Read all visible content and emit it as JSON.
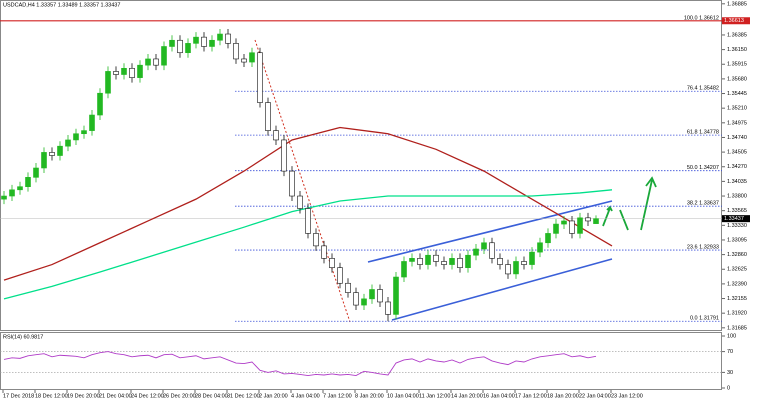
{
  "chart_data": {
    "type": "candlestick",
    "title": "USDCAD,H4 1.33357 1.33489 1.33357 1.33437",
    "up_color": "#22b822",
    "down_color": "#111111",
    "ylim": [
      1.3165,
      1.3693
    ],
    "yticks": [
      1.36885,
      1.36385,
      {
        "value": 1.3615,
        "label": "1.36150"
      },
      1.35915,
      {
        "value": 1.3568,
        "label": "1.35680"
      },
      1.35445,
      {
        "value": 1.3521,
        "label": "1.35210"
      },
      1.34975,
      {
        "value": 1.3474,
        "label": "1.34740"
      },
      1.34505,
      {
        "value": 1.3427,
        "label": "1.34270"
      },
      1.34035,
      {
        "value": 1.338,
        "label": "1.33800"
      },
      1.33565,
      {
        "value": 1.3333,
        "label": "1.33330"
      },
      1.33095,
      {
        "value": 1.3286,
        "label": "1.32860"
      },
      1.32625,
      {
        "value": 1.3239,
        "label": "1.32390"
      },
      1.32155,
      {
        "value": 1.3192,
        "label": "1.31920"
      },
      1.31685
    ],
    "x_labels": [
      "17 Dec 2018",
      "18 Dec 12:00",
      "19 Dec 20:00",
      "21 Dec 04:00",
      "24 Dec 12:00",
      "26 Dec 20:00",
      "28 Dec 04:00",
      "31 Dec 12:00",
      "2 Jan 20:00",
      "4 Jan 04:00",
      "7 Jan 12:00",
      "8 Jan 20:00",
      "10 Jan 04:00",
      "11 Jan 12:00",
      "14 Jan 20:00",
      "16 Jan 04:00",
      "17 Jan 12:00",
      "18 Jan 20:00",
      "22 Jan 04:00",
      "23 Jan 12:00"
    ],
    "candles": [
      [
        1.3375,
        1.3388,
        1.3367,
        1.338
      ],
      [
        1.338,
        1.3398,
        1.3372,
        1.339
      ],
      [
        1.339,
        1.3403,
        1.3382,
        1.3395
      ],
      [
        1.3395,
        1.3418,
        1.3387,
        1.341
      ],
      [
        1.341,
        1.3433,
        1.3402,
        1.3425
      ],
      [
        1.3425,
        1.3458,
        1.3417,
        1.345
      ],
      [
        1.345,
        1.3458,
        1.3437,
        1.3445
      ],
      [
        1.3445,
        1.3468,
        1.3437,
        1.346
      ],
      [
        1.346,
        1.3478,
        1.3452,
        1.347
      ],
      [
        1.347,
        1.3488,
        1.3462,
        1.348
      ],
      [
        1.348,
        1.3493,
        1.3472,
        1.3485
      ],
      [
        1.3485,
        1.3518,
        1.3477,
        1.351
      ],
      [
        1.351,
        1.3553,
        1.3502,
        1.3545
      ],
      [
        1.3545,
        1.3588,
        1.3537,
        1.358
      ],
      [
        1.358,
        1.3588,
        1.3567,
        1.3575
      ],
      [
        1.3575,
        1.3593,
        1.3567,
        1.3585
      ],
      [
        1.3585,
        1.3593,
        1.3562,
        1.357
      ],
      [
        1.357,
        1.3598,
        1.3562,
        1.359
      ],
      [
        1.359,
        1.3608,
        1.3582,
        1.36
      ],
      [
        1.36,
        1.3608,
        1.3582,
        1.359
      ],
      [
        1.359,
        1.3628,
        1.3582,
        1.362
      ],
      [
        1.362,
        1.3638,
        1.3612,
        1.363
      ],
      [
        1.363,
        1.3638,
        1.3602,
        1.361
      ],
      [
        1.361,
        1.3633,
        1.3602,
        1.3625
      ],
      [
        1.3625,
        1.3643,
        1.3617,
        1.3635
      ],
      [
        1.3635,
        1.3643,
        1.3612,
        1.362
      ],
      [
        1.362,
        1.3638,
        1.3612,
        1.363
      ],
      [
        1.363,
        1.3648,
        1.3622,
        1.364
      ],
      [
        1.364,
        1.3648,
        1.3617,
        1.3625
      ],
      [
        1.3625,
        1.3633,
        1.3592,
        1.36
      ],
      [
        1.36,
        1.3608,
        1.3587,
        1.3595
      ],
      [
        1.3595,
        1.3618,
        1.3587,
        1.361
      ],
      [
        1.361,
        1.3618,
        1.3522,
        1.353
      ],
      [
        1.353,
        1.3538,
        1.3477,
        1.3485
      ],
      [
        1.3485,
        1.3493,
        1.3462,
        1.347
      ],
      [
        1.347,
        1.3478,
        1.3412,
        1.342
      ],
      [
        1.342,
        1.3428,
        1.3372,
        1.338
      ],
      [
        1.338,
        1.3388,
        1.3352,
        1.336
      ],
      [
        1.336,
        1.3368,
        1.3312,
        1.332
      ],
      [
        1.332,
        1.3328,
        1.3292,
        1.33
      ],
      [
        1.33,
        1.3308,
        1.3272,
        1.328
      ],
      [
        1.328,
        1.3288,
        1.3257,
        1.3265
      ],
      [
        1.3265,
        1.3273,
        1.3232,
        1.324
      ],
      [
        1.324,
        1.3248,
        1.3217,
        1.3225
      ],
      [
        1.3225,
        1.3233,
        1.3197,
        1.3205
      ],
      [
        1.3205,
        1.3223,
        1.3197,
        1.3215
      ],
      [
        1.3215,
        1.3238,
        1.3207,
        1.323
      ],
      [
        1.323,
        1.3238,
        1.3202,
        1.321
      ],
      [
        1.321,
        1.3218,
        1.3179,
        1.319
      ],
      [
        1.319,
        1.3258,
        1.3182,
        1.325
      ],
      [
        1.325,
        1.3283,
        1.3242,
        1.3275
      ],
      [
        1.3275,
        1.3288,
        1.3267,
        1.328
      ],
      [
        1.328,
        1.3288,
        1.3262,
        1.327
      ],
      [
        1.327,
        1.3293,
        1.3262,
        1.3285
      ],
      [
        1.3285,
        1.3293,
        1.3267,
        1.3275
      ],
      [
        1.3275,
        1.3283,
        1.3262,
        1.327
      ],
      [
        1.327,
        1.3288,
        1.3262,
        1.328
      ],
      [
        1.328,
        1.3288,
        1.3257,
        1.3265
      ],
      [
        1.3265,
        1.3293,
        1.3257,
        1.3285
      ],
      [
        1.3285,
        1.3303,
        1.3277,
        1.3295
      ],
      [
        1.3295,
        1.3313,
        1.3287,
        1.3305
      ],
      [
        1.3305,
        1.3313,
        1.3272,
        1.328
      ],
      [
        1.328,
        1.3288,
        1.3262,
        1.327
      ],
      [
        1.327,
        1.3278,
        1.3247,
        1.3255
      ],
      [
        1.3255,
        1.3283,
        1.3247,
        1.3275
      ],
      [
        1.3275,
        1.3283,
        1.3262,
        1.327
      ],
      [
        1.327,
        1.3298,
        1.3262,
        1.329
      ],
      [
        1.329,
        1.3313,
        1.3282,
        1.3305
      ],
      [
        1.3305,
        1.3328,
        1.3297,
        1.332
      ],
      [
        1.332,
        1.3343,
        1.3312,
        1.3335
      ],
      [
        1.3335,
        1.3348,
        1.3327,
        1.334
      ],
      [
        1.334,
        1.3348,
        1.3312,
        1.332
      ],
      [
        1.332,
        1.3353,
        1.3312,
        1.3345
      ],
      [
        1.3345,
        1.3353,
        1.3332,
        1.334
      ],
      [
        1.33357,
        1.33489,
        1.33357,
        1.33437
      ]
    ],
    "moving_averages": [
      {
        "color": "#b0201c",
        "x": [
          0,
          6,
          12,
          18,
          24,
          30,
          36,
          42,
          48,
          54,
          60,
          66,
          72,
          76
        ],
        "values": [
          1.3245,
          1.327,
          1.3305,
          1.334,
          1.3375,
          1.342,
          1.347,
          1.349,
          1.348,
          1.3455,
          1.342,
          1.3375,
          1.333,
          1.33
        ]
      },
      {
        "color": "#00e08a",
        "x": [
          0,
          6,
          12,
          18,
          24,
          30,
          36,
          42,
          48,
          54,
          60,
          66,
          72,
          76
        ],
        "values": [
          1.3215,
          1.3235,
          1.3258,
          1.3282,
          1.3306,
          1.333,
          1.3355,
          1.3372,
          1.338,
          1.338,
          1.338,
          1.338,
          1.3385,
          1.339
        ]
      }
    ],
    "fib_levels": [
      {
        "value": 1.36612,
        "label": "100.0 1.36612"
      },
      {
        "value": 1.35482,
        "label": "76.4 1.35482"
      },
      {
        "value": 1.34778,
        "label": "61.8 1.34778"
      },
      {
        "value": 1.34207,
        "label": "50.0 1.34207"
      },
      {
        "value": 1.33637,
        "label": "38.2 1.33637"
      },
      {
        "value": 1.32933,
        "label": "23.6 1.32933"
      },
      {
        "value": 1.31791,
        "label": "0.0 1.31791"
      }
    ],
    "resistance_price": 1.36613,
    "current_price": 1.33437,
    "rsi": {
      "title": "RSI(14) 60.9817",
      "color": "#b03cc8",
      "ylim": [
        0,
        100
      ],
      "yticks": [
        100,
        70,
        30,
        0
      ],
      "levels": [
        70,
        30
      ],
      "values": [
        55,
        58,
        57,
        62,
        64,
        66,
        60,
        63,
        62,
        61,
        58,
        64,
        68,
        70,
        66,
        64,
        60,
        62,
        63,
        58,
        64,
        65,
        58,
        60,
        62,
        56,
        58,
        60,
        54,
        48,
        47,
        50,
        34,
        30,
        33,
        27,
        28,
        26,
        24,
        26,
        25,
        27,
        25,
        26,
        24,
        32,
        30,
        27,
        25,
        48,
        54,
        56,
        50,
        56,
        52,
        50,
        54,
        48,
        55,
        58,
        60,
        52,
        48,
        45,
        52,
        50,
        56,
        60,
        62,
        64,
        66,
        60,
        62,
        58,
        61
      ]
    }
  }
}
